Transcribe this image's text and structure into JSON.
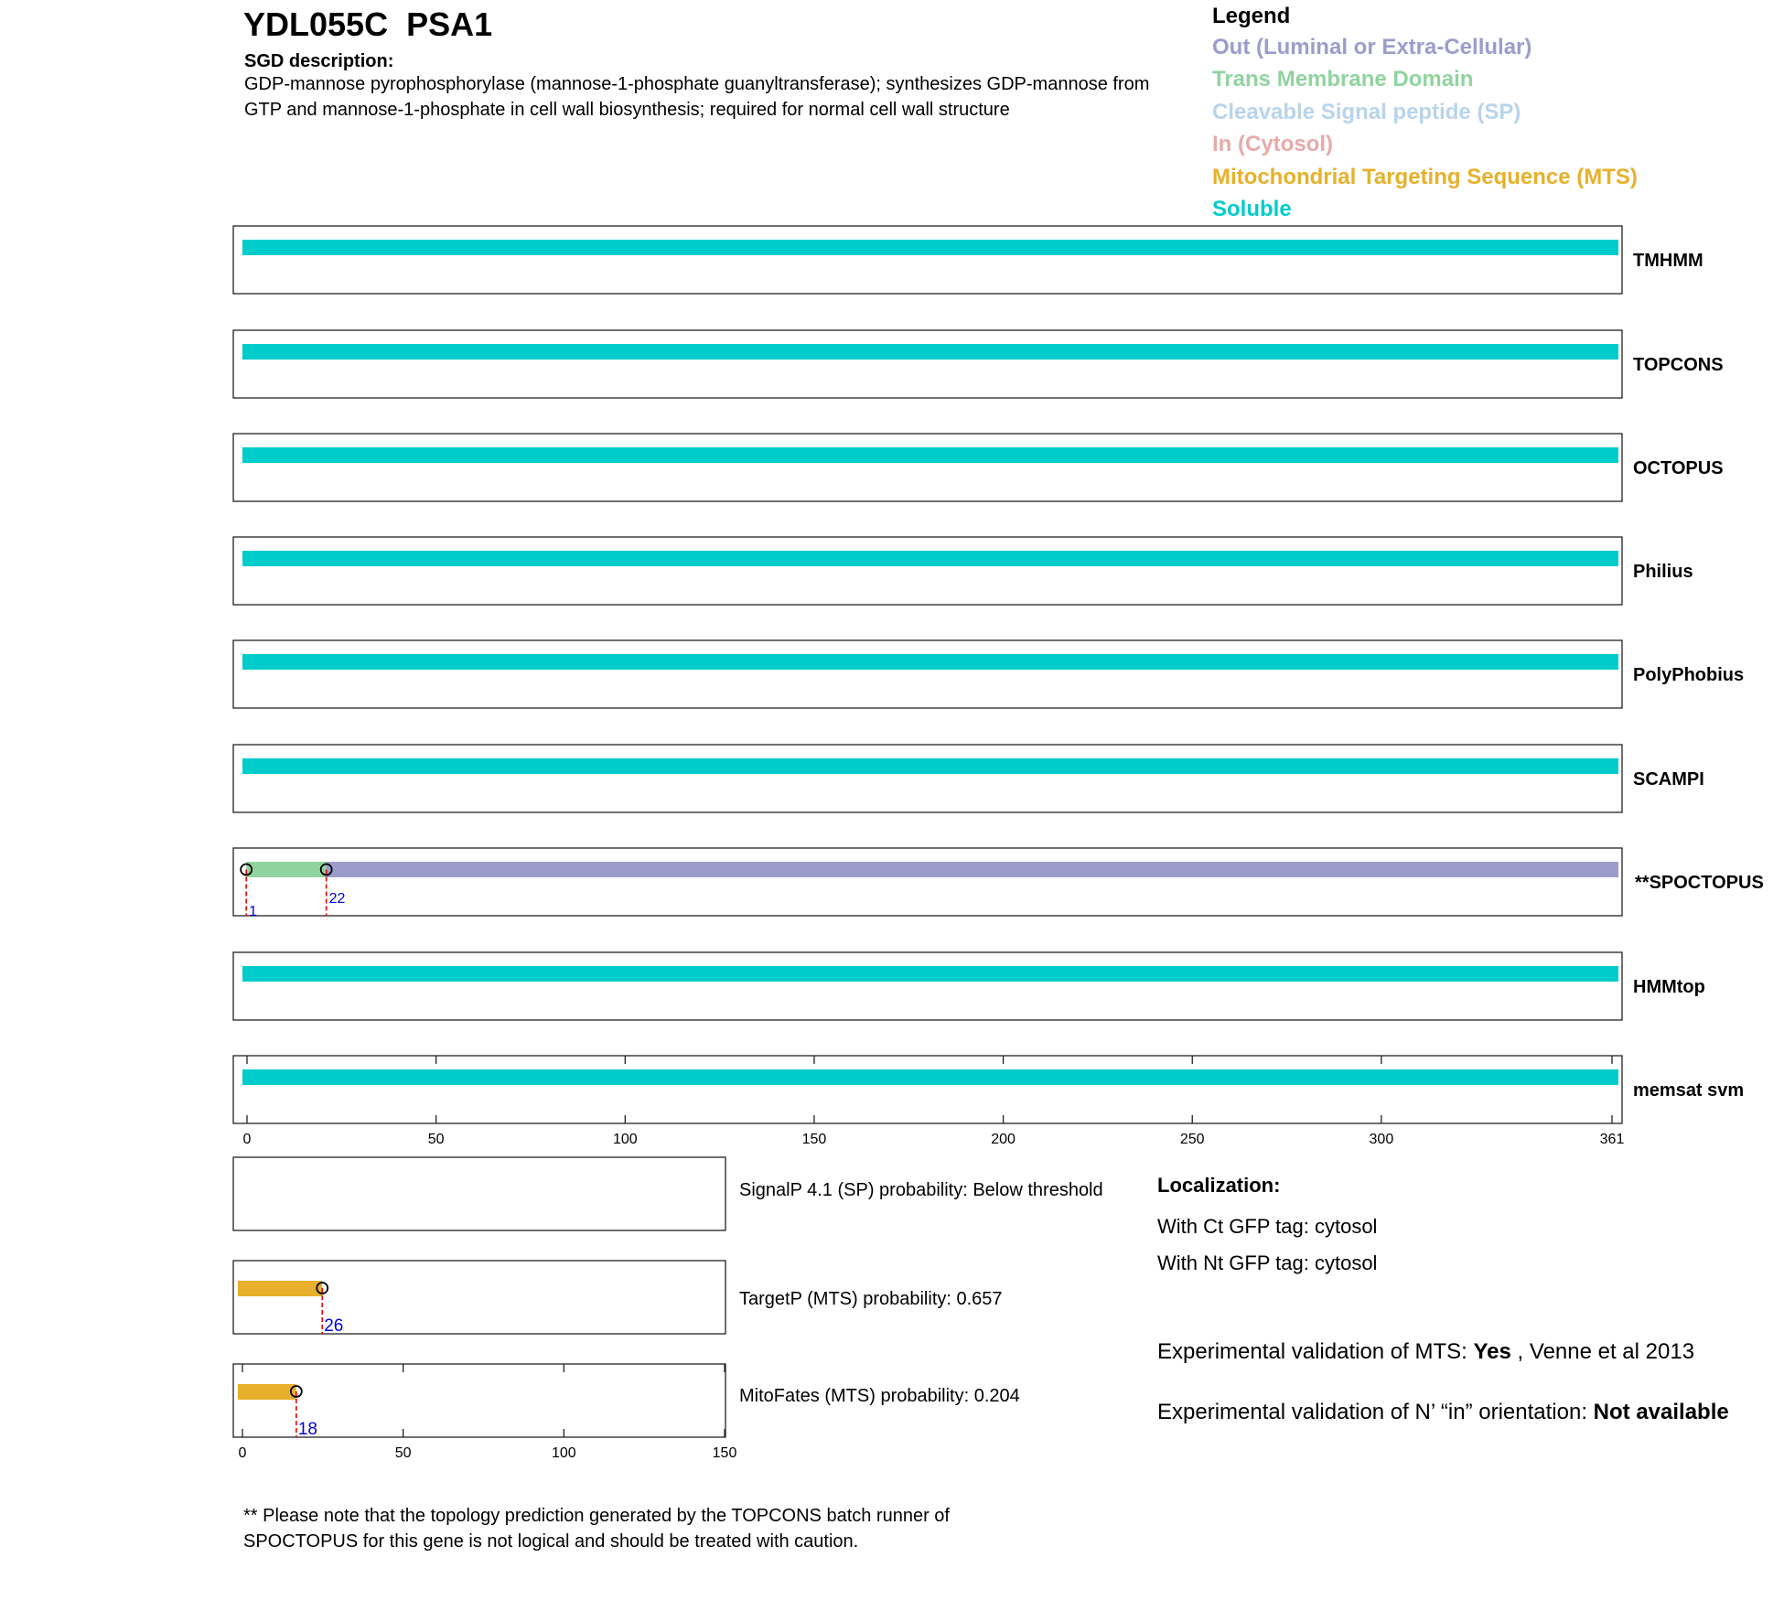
{
  "header": {
    "gene_id": "YDL055C",
    "gene_name": "PSA1",
    "sgd_heading": "SGD description:",
    "sgd_description": "GDP-mannose pyrophosphorylase (mannose-1-phosphate guanyltransferase); synthesizes GDP-mannose from GTP and mannose-1-phosphate in cell wall biosynthesis; required for normal cell wall structure"
  },
  "legend": {
    "title": "Legend",
    "items": [
      {
        "label": "Out (Luminal or Extra-Cellular)",
        "color": "#9c9ccc"
      },
      {
        "label": "Trans Membrane Domain",
        "color": "#90d39f"
      },
      {
        "label": "Cleavable Signal peptide (SP)",
        "color": "#b8d4ec"
      },
      {
        "label": "In (Cytosol)",
        "color": "#e8a9a9"
      },
      {
        "label": "Mitochondrial Targeting Sequence (MTS)",
        "color": "#e8b02a"
      },
      {
        "label": "Soluble",
        "color": "#00cccc"
      }
    ]
  },
  "chart_data": [
    {
      "type": "topology",
      "x_range": [
        0,
        361
      ],
      "x_ticks": [
        0,
        50,
        100,
        150,
        200,
        250,
        300,
        361
      ],
      "tracks": [
        {
          "name": "TMHMM",
          "segments": [
            {
              "start": 0,
              "end": 361,
              "kind": "soluble"
            }
          ],
          "markers": []
        },
        {
          "name": "TOPCONS",
          "segments": [
            {
              "start": 0,
              "end": 361,
              "kind": "soluble"
            }
          ],
          "markers": []
        },
        {
          "name": "OCTOPUS",
          "segments": [
            {
              "start": 0,
              "end": 361,
              "kind": "soluble"
            }
          ],
          "markers": []
        },
        {
          "name": "Philius",
          "segments": [
            {
              "start": 0,
              "end": 361,
              "kind": "soluble"
            }
          ],
          "markers": []
        },
        {
          "name": "PolyPhobius",
          "segments": [
            {
              "start": 0,
              "end": 361,
              "kind": "soluble"
            }
          ],
          "markers": []
        },
        {
          "name": "SCAMPI",
          "segments": [
            {
              "start": 0,
              "end": 361,
              "kind": "soluble"
            }
          ],
          "markers": []
        },
        {
          "name": "**SPOCTOPUS",
          "segments": [
            {
              "start": 1,
              "end": 22,
              "kind": "tm"
            },
            {
              "start": 22,
              "end": 361,
              "kind": "out"
            }
          ],
          "markers": [
            1,
            22
          ]
        },
        {
          "name": "HMMtop",
          "segments": [
            {
              "start": 0,
              "end": 361,
              "kind": "soluble"
            }
          ],
          "markers": []
        },
        {
          "name": "memsat svm",
          "segments": [
            {
              "start": 0,
              "end": 361,
              "kind": "soluble"
            }
          ],
          "markers": []
        }
      ]
    },
    {
      "type": "bar",
      "x_range": [
        0,
        150
      ],
      "x_ticks": [
        0,
        50,
        100,
        150
      ],
      "tracks": [
        {
          "name": "SignalP",
          "label": "SignalP 4.1 (SP) probability: Below threshold",
          "segments": [],
          "markers": []
        },
        {
          "name": "TargetP",
          "label": "TargetP (MTS) probability: 0.657",
          "segments": [
            {
              "start": 0,
              "end": 26,
              "kind": "mts"
            }
          ],
          "markers": [
            26
          ]
        },
        {
          "name": "MitoFates",
          "label": "MitoFates (MTS) probability: 0.204",
          "segments": [
            {
              "start": 0,
              "end": 18,
              "kind": "mts"
            }
          ],
          "markers": [
            18
          ]
        }
      ]
    }
  ],
  "localization": {
    "heading": "Localization:",
    "ct": "With Ct GFP tag: cytosol",
    "nt": "With Nt GFP tag: cytosol"
  },
  "validation": {
    "mts_prefix": "Experimental validation of MTS: ",
    "mts_value": "Yes",
    "mts_suffix": " , Venne et al 2013",
    "nin_prefix": "Experimental validation of N’ “in” orientation: ",
    "nin_value": "Not available"
  },
  "footnote": "** Please note that the topology prediction generated by the TOPCONS batch runner of SPOCTOPUS for this gene is not logical and should be treated with caution.",
  "colors": {
    "soluble": "#00cccc",
    "out": "#9c9ccc",
    "tm": "#90d39f",
    "mts": "#e8b02a",
    "marker_line": "#ee0000",
    "marker_text": "#0000dd"
  }
}
